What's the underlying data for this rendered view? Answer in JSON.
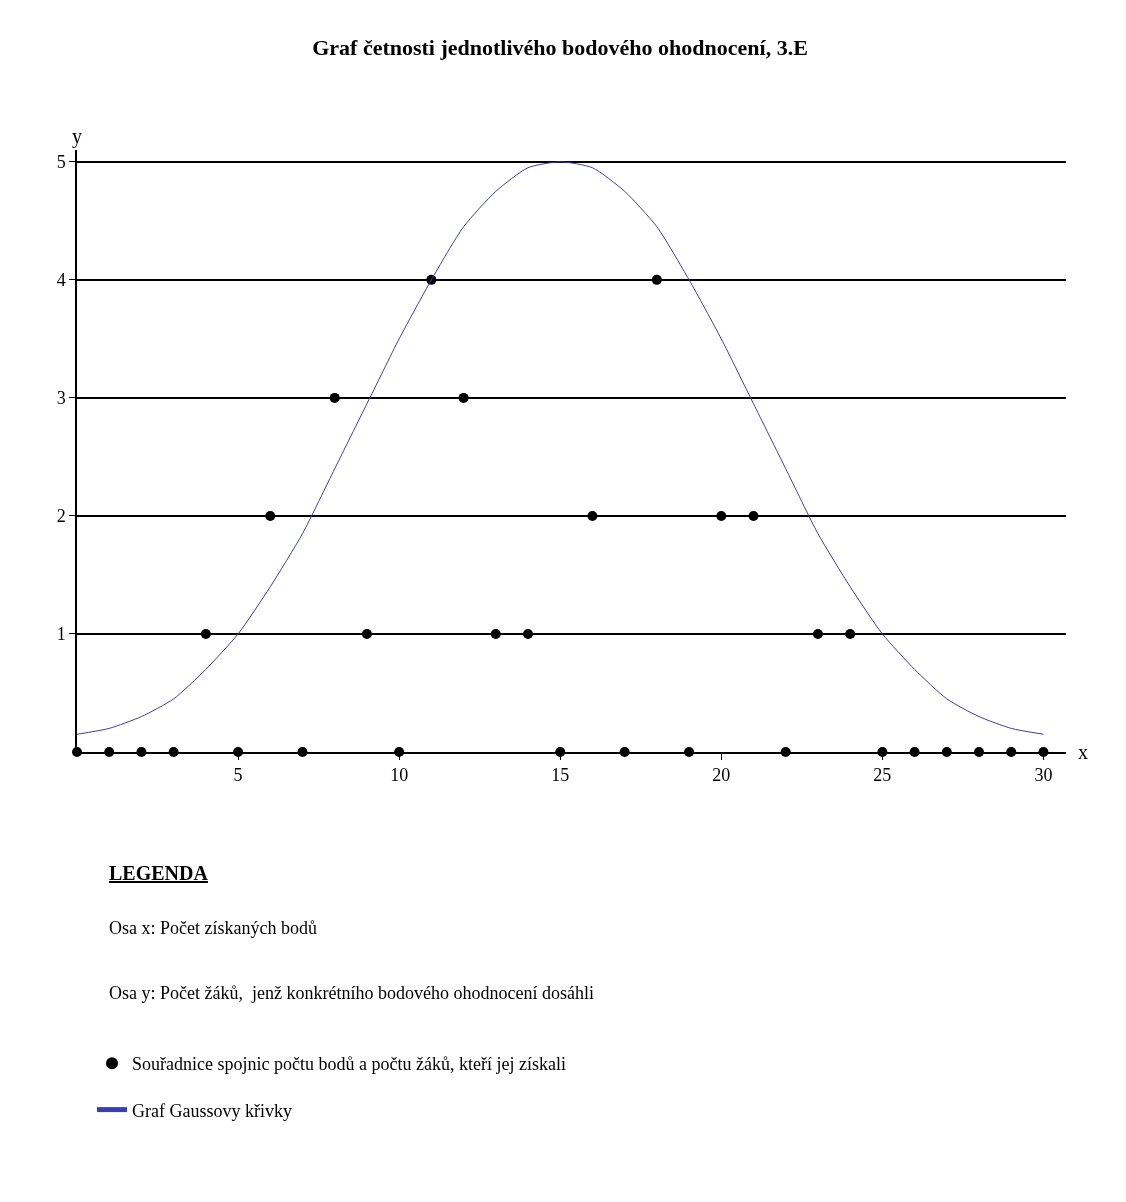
{
  "chart_data": {
    "type": "scatter",
    "title": "Graf četnosti jednotlivého bodového ohodnocení, 3.E",
    "xlabel": "x",
    "ylabel": "y",
    "series": [
      {
        "name": "Souřadnice spojnic počtu bodů a počtu žáků, kteří jej získali",
        "marker": "circle",
        "color": "#000000",
        "x": [
          0,
          1,
          2,
          3,
          4,
          5,
          6,
          7,
          8,
          9,
          10,
          11,
          12,
          13,
          14,
          15,
          16,
          17,
          18,
          19,
          20,
          21,
          22,
          23,
          24,
          25,
          26,
          27,
          28,
          29,
          30
        ],
        "values": [
          0,
          0,
          0,
          0,
          1,
          0,
          2,
          0,
          3,
          1,
          0,
          4,
          3,
          1,
          1,
          0,
          2,
          0,
          4,
          0,
          2,
          2,
          0,
          1,
          1,
          0,
          0,
          0,
          0,
          0,
          0
        ]
      },
      {
        "name": "Graf Gaussovy křivky",
        "type": "line",
        "marker": "none",
        "line_style": "solid",
        "color": "#3c3cb4",
        "x": [
          0,
          1,
          2,
          3,
          4,
          5,
          6,
          7,
          8,
          9,
          10,
          11,
          12,
          13,
          14,
          15,
          16,
          17,
          18,
          19,
          20,
          21,
          22,
          23,
          24,
          25,
          26,
          27,
          28,
          29,
          30
        ],
        "values": [
          0.15,
          0.2,
          0.3,
          0.45,
          0.7,
          1.0,
          1.4,
          1.85,
          2.4,
          2.95,
          3.5,
          4.0,
          4.45,
          4.75,
          4.95,
          5.0,
          4.95,
          4.75,
          4.45,
          4.0,
          3.5,
          2.95,
          2.4,
          1.85,
          1.4,
          1.0,
          0.7,
          0.45,
          0.3,
          0.2,
          0.15
        ]
      }
    ],
    "xlim": [
      0,
      30.7
    ],
    "ylim": [
      0,
      5.1
    ],
    "xticks": [
      5,
      10,
      15,
      20,
      25,
      30
    ],
    "yticks": [
      1,
      2,
      3,
      4,
      5
    ],
    "grid": "y",
    "legend": "bottom",
    "annotations": [
      "LEGENDA",
      "Osa x: Počet získaných bodů",
      "Osa y: Počet žáků,  jenž konkrétního bodového ohodnocení dosáhli"
    ]
  }
}
